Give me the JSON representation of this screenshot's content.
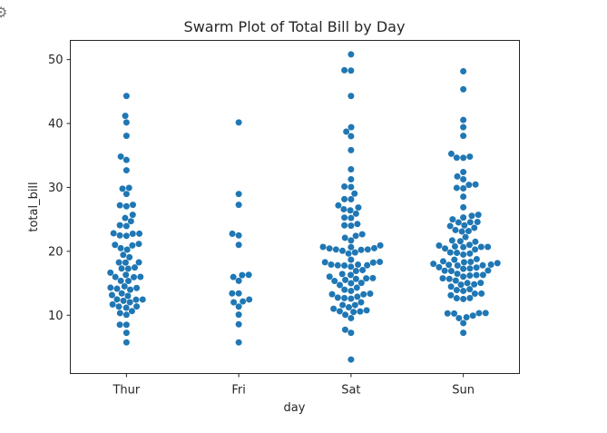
{
  "chart_data": {
    "type": "scatter",
    "subtype": "swarm",
    "title": "Swarm Plot of Total Bill by Day",
    "xlabel": "day",
    "ylabel": "total_bill",
    "categories": [
      "Thur",
      "Fri",
      "Sat",
      "Sun"
    ],
    "y_ticks": [
      10,
      20,
      30,
      40,
      50
    ],
    "ylim": [
      0.88,
      53.0
    ],
    "grid": false,
    "legend": "none",
    "point_color": "#1f77b4",
    "series": [
      {
        "category": "Thur",
        "values": [
          27.2,
          22.76,
          17.29,
          19.44,
          16.66,
          10.07,
          32.68,
          15.98,
          34.83,
          13.03,
          18.28,
          24.71,
          21.16,
          28.97,
          22.49,
          5.75,
          16.32,
          22.75,
          40.17,
          27.28,
          12.03,
          21.01,
          12.46,
          11.35,
          15.38,
          44.3,
          22.42,
          20.92,
          15.36,
          20.49,
          25.21,
          18.24,
          14.31,
          14.0,
          7.25,
          38.07,
          23.95,
          25.71,
          17.31,
          29.93,
          10.65,
          12.43,
          24.08,
          11.69,
          13.42,
          14.26,
          15.95,
          12.48,
          29.8,
          8.52,
          14.52,
          11.38,
          22.82,
          19.08,
          20.27,
          11.17,
          12.26,
          18.26,
          8.51,
          10.33,
          14.15,
          16.0,
          13.16,
          17.47,
          34.3,
          41.19,
          27.05
        ]
      },
      {
        "category": "Fri",
        "values": [
          28.97,
          22.49,
          5.75,
          16.32,
          22.75,
          40.17,
          27.28,
          12.03,
          21.01,
          12.46,
          11.35,
          15.38,
          12.16,
          13.42,
          8.58,
          15.98,
          13.42,
          16.27,
          10.09
        ]
      },
      {
        "category": "Sat",
        "values": [
          20.65,
          17.92,
          20.29,
          15.77,
          39.42,
          19.82,
          17.81,
          13.37,
          12.69,
          21.7,
          19.65,
          9.55,
          18.35,
          15.06,
          20.69,
          17.78,
          24.06,
          16.31,
          16.93,
          18.69,
          31.27,
          16.04,
          38.01,
          26.41,
          11.24,
          48.27,
          20.29,
          13.81,
          11.02,
          18.29,
          17.59,
          20.08,
          16.45,
          3.07,
          20.23,
          15.01,
          12.02,
          17.07,
          26.86,
          25.28,
          14.73,
          10.51,
          17.92,
          44.3,
          22.42,
          20.92,
          15.36,
          20.49,
          25.21,
          18.24,
          14.31,
          14.0,
          7.25,
          10.59,
          10.63,
          50.81,
          15.81,
          26.59,
          38.73,
          24.27,
          12.76,
          30.06,
          25.89,
          48.33,
          13.27,
          28.17,
          12.9,
          28.15,
          11.59,
          7.74,
          30.14,
          20.45,
          13.28,
          22.12,
          24.01,
          15.69,
          11.61,
          10.77,
          15.53,
          10.07,
          12.6,
          32.83,
          35.83,
          29.03,
          27.18,
          22.67,
          17.82
        ]
      },
      {
        "category": "Sun",
        "values": [
          16.99,
          10.34,
          21.01,
          23.68,
          24.59,
          25.29,
          8.77,
          26.88,
          15.04,
          14.78,
          10.27,
          35.26,
          15.42,
          18.43,
          14.83,
          21.58,
          10.33,
          16.29,
          16.97,
          20.65,
          17.92,
          20.29,
          15.77,
          39.42,
          19.82,
          17.81,
          13.37,
          12.69,
          21.7,
          19.65,
          9.55,
          18.35,
          15.06,
          20.69,
          17.78,
          24.06,
          16.31,
          16.93,
          18.69,
          31.27,
          16.04,
          17.46,
          13.94,
          9.68,
          30.4,
          18.29,
          22.23,
          32.4,
          28.55,
          18.04,
          12.54,
          10.29,
          34.81,
          9.94,
          25.56,
          19.49,
          38.07,
          23.95,
          25.71,
          17.31,
          29.93,
          14.07,
          13.13,
          17.26,
          24.55,
          19.77,
          29.85,
          48.17,
          25.0,
          13.39,
          16.49,
          21.5,
          12.66,
          16.21,
          13.81,
          17.51,
          24.52,
          20.76,
          31.71,
          7.25,
          20.45,
          18.78,
          34.63,
          34.65,
          23.33,
          45.35,
          23.17,
          40.55,
          20.69,
          20.9,
          30.46,
          18.15,
          23.1,
          15.69,
          17.89,
          14.48
        ]
      }
    ]
  },
  "toolbar": {
    "corner_icon": "settings-icon"
  }
}
